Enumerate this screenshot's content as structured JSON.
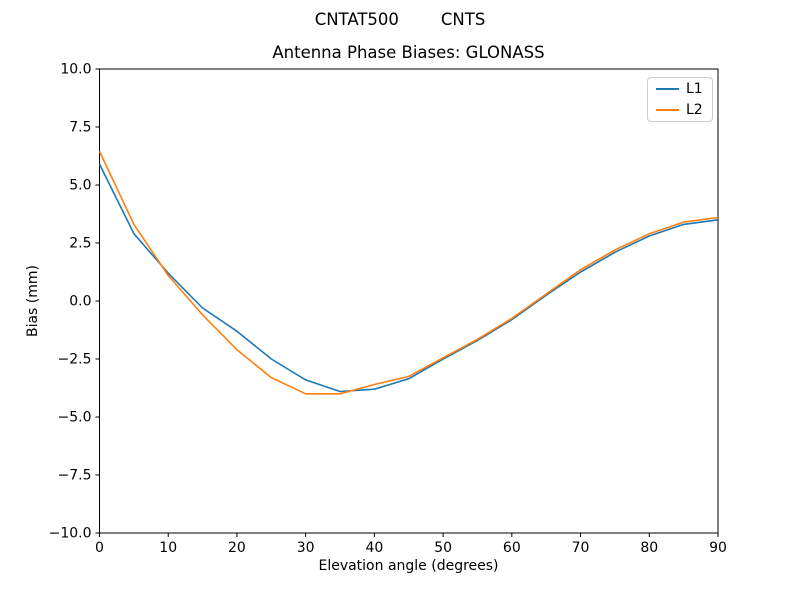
{
  "figure": {
    "suptitle": "CNTAT500        CNTS"
  },
  "chart_data": {
    "type": "line",
    "title": "Antenna Phase Biases: GLONASS",
    "xlabel": "Elevation angle (degrees)",
    "ylabel": "Bias (mm)",
    "xlim": [
      0,
      90
    ],
    "ylim": [
      -10,
      10
    ],
    "grid": false,
    "legend_position": "upper right",
    "x_tick_values": [
      0,
      10,
      20,
      30,
      40,
      50,
      60,
      70,
      80,
      90
    ],
    "x_tick_labels": [
      "0",
      "10",
      "20",
      "30",
      "40",
      "50",
      "60",
      "70",
      "80",
      "90"
    ],
    "y_tick_values": [
      10,
      7.5,
      5,
      2.5,
      0,
      -2.5,
      -5,
      -7.5,
      -10
    ],
    "y_tick_labels": [
      "10.0",
      "7.5",
      "5.0",
      "2.5",
      "0.0",
      "−2.5",
      "−5.0",
      "−7.5",
      "−10.0"
    ],
    "x": [
      0,
      5,
      10,
      15,
      20,
      25,
      30,
      35,
      40,
      45,
      50,
      55,
      60,
      65,
      70,
      75,
      80,
      85,
      90
    ],
    "series": [
      {
        "name": "L1",
        "color": "#1f77b4",
        "values": [
          5.9,
          2.9,
          1.2,
          -0.3,
          -1.3,
          -2.5,
          -3.4,
          -3.9,
          -3.8,
          -3.35,
          -2.5,
          -1.7,
          -0.8,
          0.25,
          1.25,
          2.1,
          2.8,
          3.3,
          3.5
        ]
      },
      {
        "name": "L2",
        "color": "#ff7f0e",
        "values": [
          6.45,
          3.3,
          1.1,
          -0.6,
          -2.1,
          -3.3,
          -4.0,
          -4.0,
          -3.6,
          -3.25,
          -2.45,
          -1.65,
          -0.75,
          0.3,
          1.35,
          2.2,
          2.9,
          3.4,
          3.6
        ]
      }
    ],
    "axis_color": "#000000",
    "background_color": "#ffffff"
  }
}
